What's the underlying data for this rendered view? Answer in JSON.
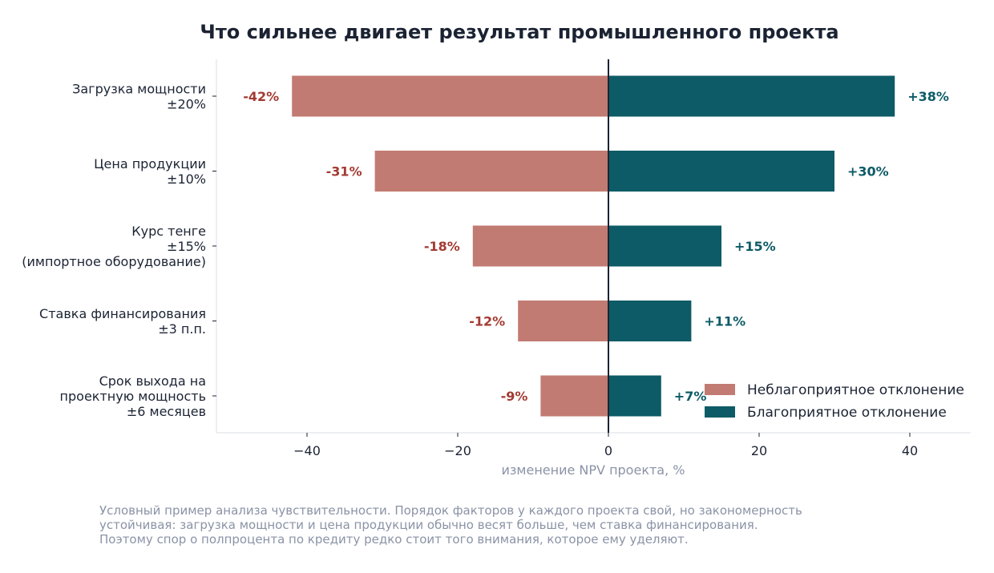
{
  "chart_data": {
    "type": "bar",
    "orientation": "horizontal",
    "title": "Что сильнее двигает результат промышленного проекта",
    "xlabel": "изменение NPV проекта, %",
    "ylabel": "",
    "xlim": [
      -52,
      48
    ],
    "xticks": [
      -40,
      -20,
      0,
      20,
      40
    ],
    "xtick_labels": [
      "−40",
      "−20",
      "0",
      "20",
      "40"
    ],
    "grid": false,
    "legend_position": "lower-right",
    "categories": [
      [
        "Загрузка мощности",
        "±20%"
      ],
      [
        "Цена продукции",
        "±10%"
      ],
      [
        "Курс тенге",
        "±15%",
        "(импортное оборудование)"
      ],
      [
        "Ставка финансирования",
        "±3 п.п."
      ],
      [
        "Срок выхода на",
        "проектную мощность",
        "±6 месяцев"
      ]
    ],
    "series": [
      {
        "name": "Неблагоприятное отклонение",
        "color": "#c27b72",
        "label_color": "#a33a32",
        "values": [
          -42,
          -31,
          -18,
          -12,
          -9
        ],
        "labels": [
          "-42%",
          "-31%",
          "-18%",
          "-12%",
          "-9%"
        ]
      },
      {
        "name": "Благоприятное отклонение",
        "color": "#0d5b66",
        "label_color": "#0d5b66",
        "values": [
          38,
          30,
          15,
          11,
          7
        ],
        "labels": [
          "+38%",
          "+30%",
          "+15%",
          "+11%",
          "+7%"
        ]
      }
    ]
  },
  "footnote": {
    "lines": [
      "Условный пример анализа чувствительности. Порядок факторов у каждого проекта свой, но закономерность",
      "устойчивая: загрузка мощности и цена продукции обычно весят больше, чем ставка финансирования.",
      "Поэтому спор о полпроцента по кредиту редко стоит того внимания, которое ему уделяют."
    ]
  }
}
